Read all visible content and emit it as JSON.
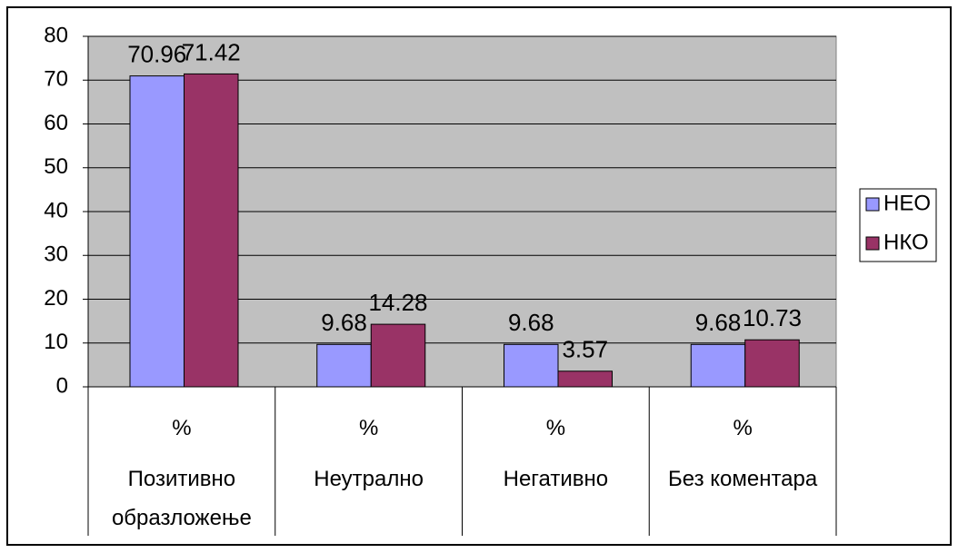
{
  "chart_data": {
    "type": "bar",
    "categories": [
      "Позитивно образложење",
      "Неутрално",
      "Негативно",
      "Без коментара"
    ],
    "category_sublabels": [
      "%",
      "%",
      "%",
      "%"
    ],
    "series": [
      {
        "name": "НЕО",
        "color": "#9999ff",
        "values": [
          70.96,
          9.68,
          9.68,
          9.68
        ]
      },
      {
        "name": "НКО",
        "color": "#993366",
        "values": [
          71.42,
          14.28,
          3.57,
          10.73
        ]
      }
    ],
    "ylim": [
      0,
      80
    ],
    "yticks": [
      0,
      10,
      20,
      30,
      40,
      50,
      60,
      70,
      80
    ],
    "grid": true,
    "legend": "right"
  }
}
